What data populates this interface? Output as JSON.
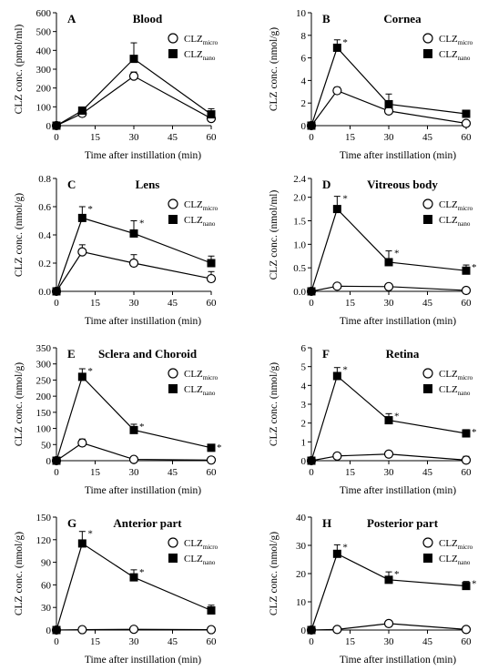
{
  "chart_data": [
    {
      "type": "line",
      "panel_letter": "A",
      "title": "Blood",
      "xlabel": "Time after instillation (min)",
      "ylabel": "CLZ conc. (pmol/ml)",
      "xlim": [
        0,
        60
      ],
      "ylim": [
        0,
        600
      ],
      "xticks": [
        0,
        15,
        30,
        45,
        60
      ],
      "yticks": [
        0,
        100,
        200,
        300,
        400,
        500,
        600
      ],
      "x": [
        0,
        10,
        30,
        60
      ],
      "series": [
        {
          "name": "CLZmicro",
          "label_main": "CLZ",
          "label_sub": "micro",
          "marker": "open-circle",
          "values": [
            0,
            65,
            263,
            38
          ],
          "err": [
            0,
            10,
            22,
            15
          ],
          "sig": [
            false,
            false,
            false,
            false
          ]
        },
        {
          "name": "CLZnano",
          "label_main": "CLZ",
          "label_sub": "nano",
          "marker": "filled-square",
          "values": [
            0,
            80,
            355,
            60
          ],
          "err": [
            0,
            18,
            85,
            30
          ],
          "sig": [
            false,
            false,
            false,
            false
          ]
        }
      ]
    },
    {
      "type": "line",
      "panel_letter": "B",
      "title": "Cornea",
      "xlabel": "Time after instillation (min)",
      "ylabel": "CLZ conc. (nmol/g)",
      "xlim": [
        0,
        60
      ],
      "ylim": [
        0,
        10
      ],
      "xticks": [
        0,
        15,
        30,
        45,
        60
      ],
      "yticks": [
        0,
        2,
        4,
        6,
        8,
        10
      ],
      "x": [
        0,
        10,
        30,
        60
      ],
      "series": [
        {
          "name": "CLZmicro",
          "label_main": "CLZ",
          "label_sub": "micro",
          "marker": "open-circle",
          "values": [
            0,
            3.1,
            1.3,
            0.2
          ],
          "err": [
            0,
            0.3,
            0.3,
            0.1
          ],
          "sig": [
            false,
            false,
            false,
            false
          ]
        },
        {
          "name": "CLZnano",
          "label_main": "CLZ",
          "label_sub": "nano",
          "marker": "filled-square",
          "values": [
            0,
            6.9,
            1.9,
            1.05
          ],
          "err": [
            0,
            0.7,
            0.9,
            0.3
          ],
          "sig": [
            false,
            true,
            false,
            false
          ]
        }
      ]
    },
    {
      "type": "line",
      "panel_letter": "C",
      "title": "Lens",
      "xlabel": "Time after instillation (min)",
      "ylabel": "CLZ conc. (nmol/g)",
      "xlim": [
        0,
        60
      ],
      "ylim": [
        0,
        0.8
      ],
      "xticks": [
        0,
        15,
        30,
        45,
        60
      ],
      "yticks": [
        0.0,
        0.2,
        0.4,
        0.6,
        0.8
      ],
      "ytick_labels": [
        "0.0",
        "0.2",
        "0.4",
        "0.6",
        "0.8"
      ],
      "x": [
        0,
        10,
        30,
        60
      ],
      "series": [
        {
          "name": "CLZmicro",
          "label_main": "CLZ",
          "label_sub": "micro",
          "marker": "open-circle",
          "values": [
            0,
            0.28,
            0.2,
            0.09
          ],
          "err": [
            0,
            0.05,
            0.06,
            0.05
          ],
          "sig": [
            false,
            false,
            false,
            false
          ]
        },
        {
          "name": "CLZnano",
          "label_main": "CLZ",
          "label_sub": "nano",
          "marker": "filled-square",
          "values": [
            0,
            0.52,
            0.41,
            0.2
          ],
          "err": [
            0,
            0.08,
            0.09,
            0.05
          ],
          "sig": [
            false,
            true,
            true,
            false
          ]
        }
      ]
    },
    {
      "type": "line",
      "panel_letter": "D",
      "title": "Vitreous body",
      "xlabel": "Time after instillation (min)",
      "ylabel": "CLZ conc. (nmol/ml)",
      "xlim": [
        0,
        60
      ],
      "ylim": [
        0,
        2.4
      ],
      "xticks": [
        0,
        15,
        30,
        45,
        60
      ],
      "yticks": [
        0.0,
        0.5,
        1.0,
        1.5,
        2.0,
        2.4
      ],
      "ytick_labels": [
        "0.0",
        "0.5",
        "1.0",
        "1.5",
        "2.0",
        "2.4"
      ],
      "x": [
        0,
        10,
        30,
        60
      ],
      "series": [
        {
          "name": "CLZmicro",
          "label_main": "CLZ",
          "label_sub": "micro",
          "marker": "open-circle",
          "values": [
            0,
            0.11,
            0.1,
            0.02
          ],
          "err": [
            0,
            0.03,
            0.03,
            0.02
          ],
          "sig": [
            false,
            false,
            false,
            false
          ]
        },
        {
          "name": "CLZnano",
          "label_main": "CLZ",
          "label_sub": "nano",
          "marker": "filled-square",
          "values": [
            0,
            1.75,
            0.62,
            0.44
          ],
          "err": [
            0,
            0.27,
            0.24,
            0.12
          ],
          "sig": [
            false,
            true,
            true,
            true
          ]
        }
      ]
    },
    {
      "type": "line",
      "panel_letter": "E",
      "title": "Sclera and Choroid",
      "xlabel": "Time after instillation (min)",
      "ylabel": "CLZ conc. (nmol/g)",
      "xlim": [
        0,
        60
      ],
      "ylim": [
        0,
        350
      ],
      "xticks": [
        0,
        15,
        30,
        45,
        60
      ],
      "yticks": [
        0,
        50,
        100,
        150,
        200,
        250,
        300,
        350
      ],
      "x": [
        0,
        10,
        30,
        60
      ],
      "series": [
        {
          "name": "CLZmicro",
          "label_main": "CLZ",
          "label_sub": "micro",
          "marker": "open-circle",
          "values": [
            0,
            55,
            4,
            2
          ],
          "err": [
            0,
            12,
            3,
            2
          ],
          "sig": [
            false,
            false,
            false,
            false
          ]
        },
        {
          "name": "CLZnano",
          "label_main": "CLZ",
          "label_sub": "nano",
          "marker": "filled-square",
          "values": [
            0,
            260,
            95,
            40
          ],
          "err": [
            0,
            25,
            18,
            8
          ],
          "sig": [
            false,
            true,
            true,
            true
          ]
        }
      ]
    },
    {
      "type": "line",
      "panel_letter": "F",
      "title": "Retina",
      "xlabel": "Time after instillation (min)",
      "ylabel": "CLZ conc. (nmol/g)",
      "xlim": [
        0,
        60
      ],
      "ylim": [
        0,
        6
      ],
      "xticks": [
        0,
        15,
        30,
        45,
        60
      ],
      "yticks": [
        0,
        1,
        2,
        3,
        4,
        5,
        6
      ],
      "x": [
        0,
        10,
        30,
        60
      ],
      "series": [
        {
          "name": "CLZmicro",
          "label_main": "CLZ",
          "label_sub": "micro",
          "marker": "open-circle",
          "values": [
            0,
            0.25,
            0.35,
            0.03
          ],
          "err": [
            0,
            0.08,
            0.1,
            0.2
          ],
          "sig": [
            false,
            false,
            false,
            false
          ]
        },
        {
          "name": "CLZnano",
          "label_main": "CLZ",
          "label_sub": "nano",
          "marker": "filled-square",
          "values": [
            0,
            4.5,
            2.15,
            1.45
          ],
          "err": [
            0,
            0.45,
            0.35,
            0.2
          ],
          "sig": [
            false,
            true,
            true,
            true
          ]
        }
      ]
    },
    {
      "type": "line",
      "panel_letter": "G",
      "title": "Anterior part",
      "xlabel": "Time after instillation (min)",
      "ylabel": "CLZ conc. (nmol/g)",
      "xlim": [
        0,
        60
      ],
      "ylim": [
        0,
        150
      ],
      "xticks": [
        0,
        15,
        30,
        45,
        60
      ],
      "yticks": [
        0,
        30,
        60,
        90,
        120,
        150
      ],
      "x": [
        0,
        10,
        30,
        60
      ],
      "series": [
        {
          "name": "CLZmicro",
          "label_main": "CLZ",
          "label_sub": "micro",
          "marker": "open-circle",
          "values": [
            0,
            0.5,
            1,
            0.5
          ],
          "err": [
            0,
            0.5,
            0.8,
            0.5
          ],
          "sig": [
            false,
            false,
            false,
            false
          ]
        },
        {
          "name": "CLZnano",
          "label_main": "CLZ",
          "label_sub": "nano",
          "marker": "filled-square",
          "values": [
            0,
            115,
            70,
            26
          ],
          "err": [
            0,
            16,
            10,
            7
          ],
          "sig": [
            false,
            true,
            true,
            false
          ]
        }
      ]
    },
    {
      "type": "line",
      "panel_letter": "H",
      "title": "Posterior part",
      "xlabel": "Time after instillation (min)",
      "ylabel": "CLZ conc. (nmol/g)",
      "xlim": [
        0,
        60
      ],
      "ylim": [
        0,
        40
      ],
      "xticks": [
        0,
        15,
        30,
        45,
        60
      ],
      "yticks": [
        0,
        10,
        20,
        30,
        40
      ],
      "x": [
        0,
        10,
        30,
        60
      ],
      "series": [
        {
          "name": "CLZmicro",
          "label_main": "CLZ",
          "label_sub": "micro",
          "marker": "open-circle",
          "values": [
            0,
            0.2,
            2.3,
            0.2
          ],
          "err": [
            0,
            0.2,
            0.4,
            0.2
          ],
          "sig": [
            false,
            false,
            false,
            false
          ]
        },
        {
          "name": "CLZnano",
          "label_main": "CLZ",
          "label_sub": "nano",
          "marker": "filled-square",
          "values": [
            0,
            27,
            17.8,
            15.6
          ],
          "err": [
            0,
            3.2,
            2.8,
            1.6
          ],
          "sig": [
            false,
            true,
            true,
            true
          ]
        }
      ]
    }
  ]
}
